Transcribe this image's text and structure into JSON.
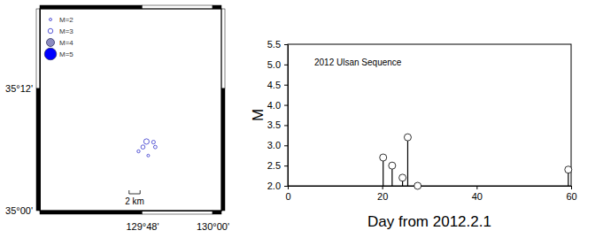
{
  "chart_data": [
    {
      "type": "scatter",
      "x": [
        129.8125,
        129.8325,
        129.8025,
        129.8375,
        129.79,
        129.8175
      ],
      "values": [
        35.113,
        35.112,
        35.104,
        35.104,
        35.097,
        35.09
      ],
      "sizes": [
        3.2,
        2.5,
        2.7,
        2.4,
        2.2,
        2.0
      ],
      "color": "#3333cc",
      "marker": "open",
      "xlim": [
        129.51,
        130.025
      ],
      "xticks": [
        {
          "value": 129.8,
          "label": "129°48'"
        },
        {
          "value": 130.0,
          "label": "130°00'"
        }
      ],
      "ylim": [
        35.0,
        35.33
      ],
      "yticks": [
        {
          "value": 35.0,
          "label": "35°00'"
        },
        {
          "value": 35.2,
          "label": "35°12'"
        }
      ],
      "legend": "upper left",
      "legend_entries": [
        {
          "label": "M=2",
          "size": 2,
          "marker": "open"
        },
        {
          "label": "M=3",
          "size": 3,
          "marker": "open"
        },
        {
          "label": "M=4",
          "size": 4,
          "marker": "filled",
          "color": "#8c8cc0"
        },
        {
          "label": "M=5",
          "size": 5,
          "marker": "filled",
          "color": "#0000ff"
        }
      ],
      "scale_bar": {
        "label": "2 km",
        "length_km": 2
      }
    },
    {
      "type": "stem",
      "title": "2012 Ulsan Sequence",
      "x": [
        20.2,
        22.1,
        24.3,
        25.4,
        27.5,
        59.4
      ],
      "values": [
        2.7,
        2.5,
        2.2,
        3.2,
        2.0,
        2.4
      ],
      "color": "#000000",
      "marker": "open",
      "xlabel": "Day from 2012.2.1",
      "ylabel": "M",
      "xlim": [
        0,
        60
      ],
      "xticks": [
        0,
        20,
        40,
        60
      ],
      "ylim": [
        2.0,
        5.5
      ],
      "yticks": [
        {
          "value": 2.0,
          "label": "2.0"
        },
        {
          "value": 2.5,
          "label": "2.5"
        },
        {
          "value": 3.0,
          "label": "3.0"
        },
        {
          "value": 3.5,
          "label": "3.5"
        },
        {
          "value": 4.0,
          "label": "4.0"
        },
        {
          "value": 4.5,
          "label": "4.5"
        },
        {
          "value": 5.0,
          "label": "5.0"
        },
        {
          "value": 5.5,
          "label": "5.5"
        }
      ]
    }
  ]
}
